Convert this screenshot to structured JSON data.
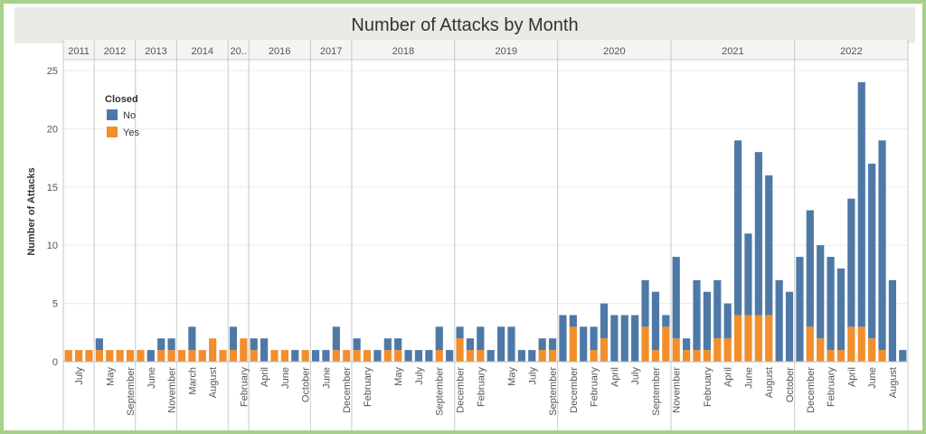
{
  "chart_data": {
    "type": "bar",
    "stacked": true,
    "title": "Number of Attacks by Month",
    "ylabel": "Number of Attacks",
    "ylim": [
      0,
      25
    ],
    "yticks": [
      0,
      5,
      10,
      15,
      20,
      25
    ],
    "legend": {
      "title": "Closed",
      "position": "top-left",
      "entries": [
        "No",
        "Yes"
      ]
    },
    "colors": {
      "No": "#4e79a7",
      "Yes": "#f28e2b"
    },
    "years": [
      {
        "label": "2011",
        "start": 0
      },
      {
        "label": "2012",
        "start": 3
      },
      {
        "label": "2013",
        "start": 7
      },
      {
        "label": "2014",
        "start": 11
      },
      {
        "label": "20..",
        "start": 16
      },
      {
        "label": "2016",
        "start": 18
      },
      {
        "label": "2017",
        "start": 24
      },
      {
        "label": "2018",
        "start": 28
      },
      {
        "label": "2019",
        "start": 38
      },
      {
        "label": "2020",
        "start": 48
      },
      {
        "label": "2021",
        "start": 59
      },
      {
        "label": "2022",
        "start": 71
      }
    ],
    "xtick_labels": [
      {
        "i": 1,
        "label": "July"
      },
      {
        "i": 4,
        "label": "May"
      },
      {
        "i": 6,
        "label": "September"
      },
      {
        "i": 8,
        "label": "June"
      },
      {
        "i": 10,
        "label": "November"
      },
      {
        "i": 12,
        "label": "March"
      },
      {
        "i": 14,
        "label": "August"
      },
      {
        "i": 17,
        "label": "February"
      },
      {
        "i": 19,
        "label": "April"
      },
      {
        "i": 21,
        "label": "June"
      },
      {
        "i": 23,
        "label": "October"
      },
      {
        "i": 25,
        "label": "June"
      },
      {
        "i": 27,
        "label": "December"
      },
      {
        "i": 29,
        "label": "February"
      },
      {
        "i": 32,
        "label": "May"
      },
      {
        "i": 34,
        "label": "July"
      },
      {
        "i": 36,
        "label": "September"
      },
      {
        "i": 38,
        "label": "December"
      },
      {
        "i": 40,
        "label": "February"
      },
      {
        "i": 43,
        "label": "May"
      },
      {
        "i": 45,
        "label": "July"
      },
      {
        "i": 47,
        "label": "September"
      },
      {
        "i": 49,
        "label": "December"
      },
      {
        "i": 51,
        "label": "February"
      },
      {
        "i": 53,
        "label": "April"
      },
      {
        "i": 55,
        "label": "July"
      },
      {
        "i": 57,
        "label": "September"
      },
      {
        "i": 59,
        "label": "November"
      },
      {
        "i": 62,
        "label": "February"
      },
      {
        "i": 64,
        "label": "April"
      },
      {
        "i": 66,
        "label": "June"
      },
      {
        "i": 68,
        "label": "August"
      },
      {
        "i": 70,
        "label": "October"
      },
      {
        "i": 72,
        "label": "December"
      },
      {
        "i": 74,
        "label": "February"
      },
      {
        "i": 76,
        "label": "April"
      },
      {
        "i": 78,
        "label": "June"
      },
      {
        "i": 80,
        "label": "August"
      }
    ],
    "series": [
      {
        "name": "No",
        "values": [
          0,
          0,
          0,
          1,
          0,
          0,
          0,
          0,
          1,
          1,
          1,
          0,
          2,
          0,
          0,
          0,
          2,
          0,
          1,
          2,
          0,
          0,
          1,
          0,
          1,
          1,
          2,
          0,
          1,
          0,
          1,
          1,
          1,
          1,
          1,
          1,
          2,
          1,
          1,
          1,
          2,
          1,
          3,
          3,
          1,
          1,
          1,
          1,
          4,
          1,
          3,
          2,
          3,
          4,
          4,
          4,
          4,
          5,
          1,
          7,
          1,
          6,
          5,
          5,
          3,
          15,
          7,
          14,
          12,
          7,
          6,
          9,
          10,
          8,
          8,
          7,
          11,
          21,
          15,
          18,
          7,
          1
        ]
      },
      {
        "name": "Yes",
        "values": [
          1,
          1,
          1,
          1,
          1,
          1,
          1,
          1,
          0,
          1,
          1,
          1,
          1,
          1,
          2,
          1,
          1,
          2,
          1,
          0,
          1,
          1,
          0,
          1,
          0,
          0,
          1,
          1,
          1,
          1,
          0,
          1,
          1,
          0,
          0,
          0,
          1,
          0,
          2,
          1,
          1,
          0,
          0,
          0,
          0,
          0,
          1,
          1,
          0,
          3,
          0,
          1,
          2,
          0,
          0,
          0,
          3,
          1,
          3,
          2,
          1,
          1,
          1,
          2,
          2,
          4,
          4,
          4,
          4,
          0,
          0,
          0,
          3,
          2,
          1,
          1,
          3,
          3,
          2,
          1,
          0,
          0
        ]
      }
    ]
  }
}
